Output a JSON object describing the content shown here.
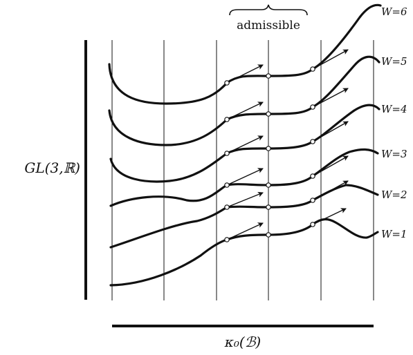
{
  "labels": {
    "admissible": "admissible",
    "vertical_axis": "GL(3,ℝ)",
    "horizontal_axis": "κ₀(ℬ)"
  },
  "fibers": [
    {
      "label": "W=6"
    },
    {
      "label": "W=5"
    },
    {
      "label": "W=4"
    },
    {
      "label": "W=3"
    },
    {
      "label": "W=2"
    },
    {
      "label": "W=1"
    }
  ]
}
